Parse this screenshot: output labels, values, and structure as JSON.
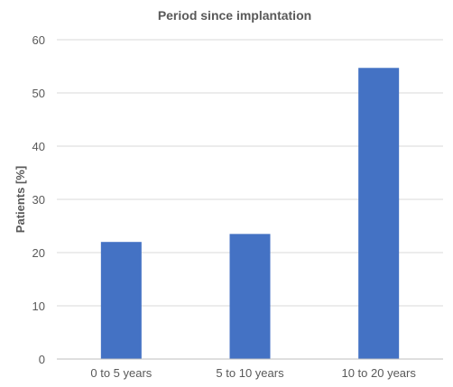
{
  "chart_data": {
    "type": "bar",
    "title": "Period since implantation",
    "xlabel": "",
    "ylabel": "Patients [%]",
    "categories": [
      "0 to 5 years",
      "5 to 10 years",
      "10 to 20 years"
    ],
    "values": [
      22,
      23.5,
      54.7
    ],
    "ylim": [
      0,
      60
    ],
    "yticks": [
      "0",
      "10",
      "20",
      "30",
      "40",
      "50",
      "60"
    ],
    "grid": true,
    "legend": "none",
    "bar_color": "#4472C4"
  }
}
